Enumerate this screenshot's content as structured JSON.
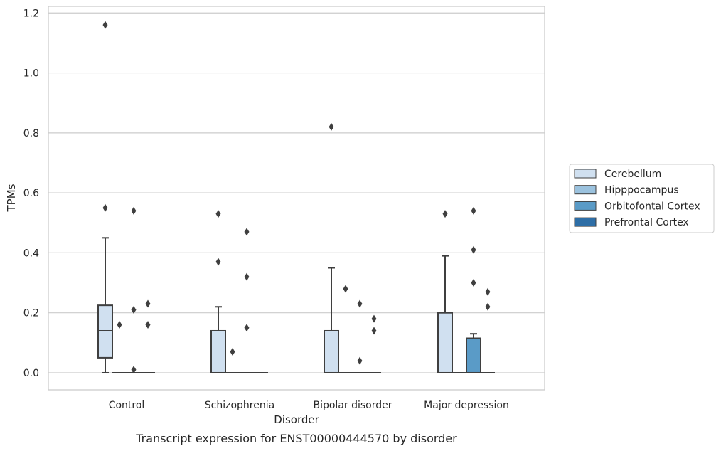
{
  "chart_data": {
    "type": "box",
    "caption": "Transcript expression for ENST00000444570 by disorder",
    "xlabel": "Disorder",
    "ylabel": "TPMs",
    "ylim": [
      -0.057,
      1.222
    ],
    "yticks": [
      "0.0",
      "0.2",
      "0.4",
      "0.6",
      "0.8",
      "1.0",
      "1.2"
    ],
    "grid": "horizontal",
    "legend_position": "right",
    "categories": [
      "Control",
      "Schizophrenia",
      "Bipolar disorder",
      "Major depression"
    ],
    "series": [
      {
        "name": "Cerebellum",
        "color": "#d0e0f0",
        "boxes": [
          {
            "whislo": 0.0,
            "q1": 0.05,
            "med": 0.14,
            "q3": 0.225,
            "whishi": 0.45,
            "fliers": [
              0.55,
              1.16
            ]
          },
          {
            "whislo": 0.0,
            "q1": 0.0,
            "med": 0.0,
            "q3": 0.14,
            "whishi": 0.22,
            "fliers": [
              0.37,
              0.53
            ]
          },
          {
            "whislo": 0.0,
            "q1": 0.0,
            "med": 0.0,
            "q3": 0.14,
            "whishi": 0.35,
            "fliers": [
              0.82
            ]
          },
          {
            "whislo": 0.0,
            "q1": 0.0,
            "med": 0.0,
            "q3": 0.2,
            "whishi": 0.39,
            "fliers": [
              0.53
            ]
          }
        ]
      },
      {
        "name": "Hipppocampus",
        "color": "#9bc2de",
        "boxes": [
          {
            "whislo": 0.0,
            "q1": 0.0,
            "med": 0.0,
            "q3": 0.0,
            "whishi": 0.0,
            "fliers": [
              0.16
            ]
          },
          {
            "whislo": 0.0,
            "q1": 0.0,
            "med": 0.0,
            "q3": 0.0,
            "whishi": 0.0,
            "fliers": [
              0.07
            ]
          },
          {
            "whislo": 0.0,
            "q1": 0.0,
            "med": 0.0,
            "q3": 0.0,
            "whishi": 0.0,
            "fliers": [
              0.28
            ]
          },
          {
            "whislo": 0.0,
            "q1": 0.0,
            "med": 0.0,
            "q3": 0.0,
            "whishi": 0.0,
            "fliers": []
          }
        ]
      },
      {
        "name": "Orbitofontal Cortex",
        "color": "#5a9bc7",
        "boxes": [
          {
            "whislo": 0.0,
            "q1": 0.0,
            "med": 0.0,
            "q3": 0.0,
            "whishi": 0.0,
            "fliers": [
              0.01,
              0.21,
              0.54
            ]
          },
          {
            "whislo": 0.0,
            "q1": 0.0,
            "med": 0.0,
            "q3": 0.0,
            "whishi": 0.0,
            "fliers": [
              0.15,
              0.32,
              0.47
            ]
          },
          {
            "whislo": 0.0,
            "q1": 0.0,
            "med": 0.0,
            "q3": 0.0,
            "whishi": 0.0,
            "fliers": [
              0.04,
              0.23
            ]
          },
          {
            "whislo": 0.0,
            "q1": 0.0,
            "med": 0.0,
            "q3": 0.115,
            "whishi": 0.13,
            "fliers": [
              0.3,
              0.41,
              0.54
            ]
          }
        ]
      },
      {
        "name": "Prefrontal Cortex",
        "color": "#2e6ea6",
        "boxes": [
          {
            "whislo": 0.0,
            "q1": 0.0,
            "med": 0.0,
            "q3": 0.0,
            "whishi": 0.0,
            "fliers": [
              0.16,
              0.23
            ]
          },
          {
            "whislo": 0.0,
            "q1": 0.0,
            "med": 0.0,
            "q3": 0.0,
            "whishi": 0.0,
            "fliers": []
          },
          {
            "whislo": 0.0,
            "q1": 0.0,
            "med": 0.0,
            "q3": 0.0,
            "whishi": 0.0,
            "fliers": [
              0.14,
              0.18
            ]
          },
          {
            "whislo": 0.0,
            "q1": 0.0,
            "med": 0.0,
            "q3": 0.0,
            "whishi": 0.0,
            "fliers": [
              0.22,
              0.27
            ]
          }
        ]
      }
    ]
  }
}
